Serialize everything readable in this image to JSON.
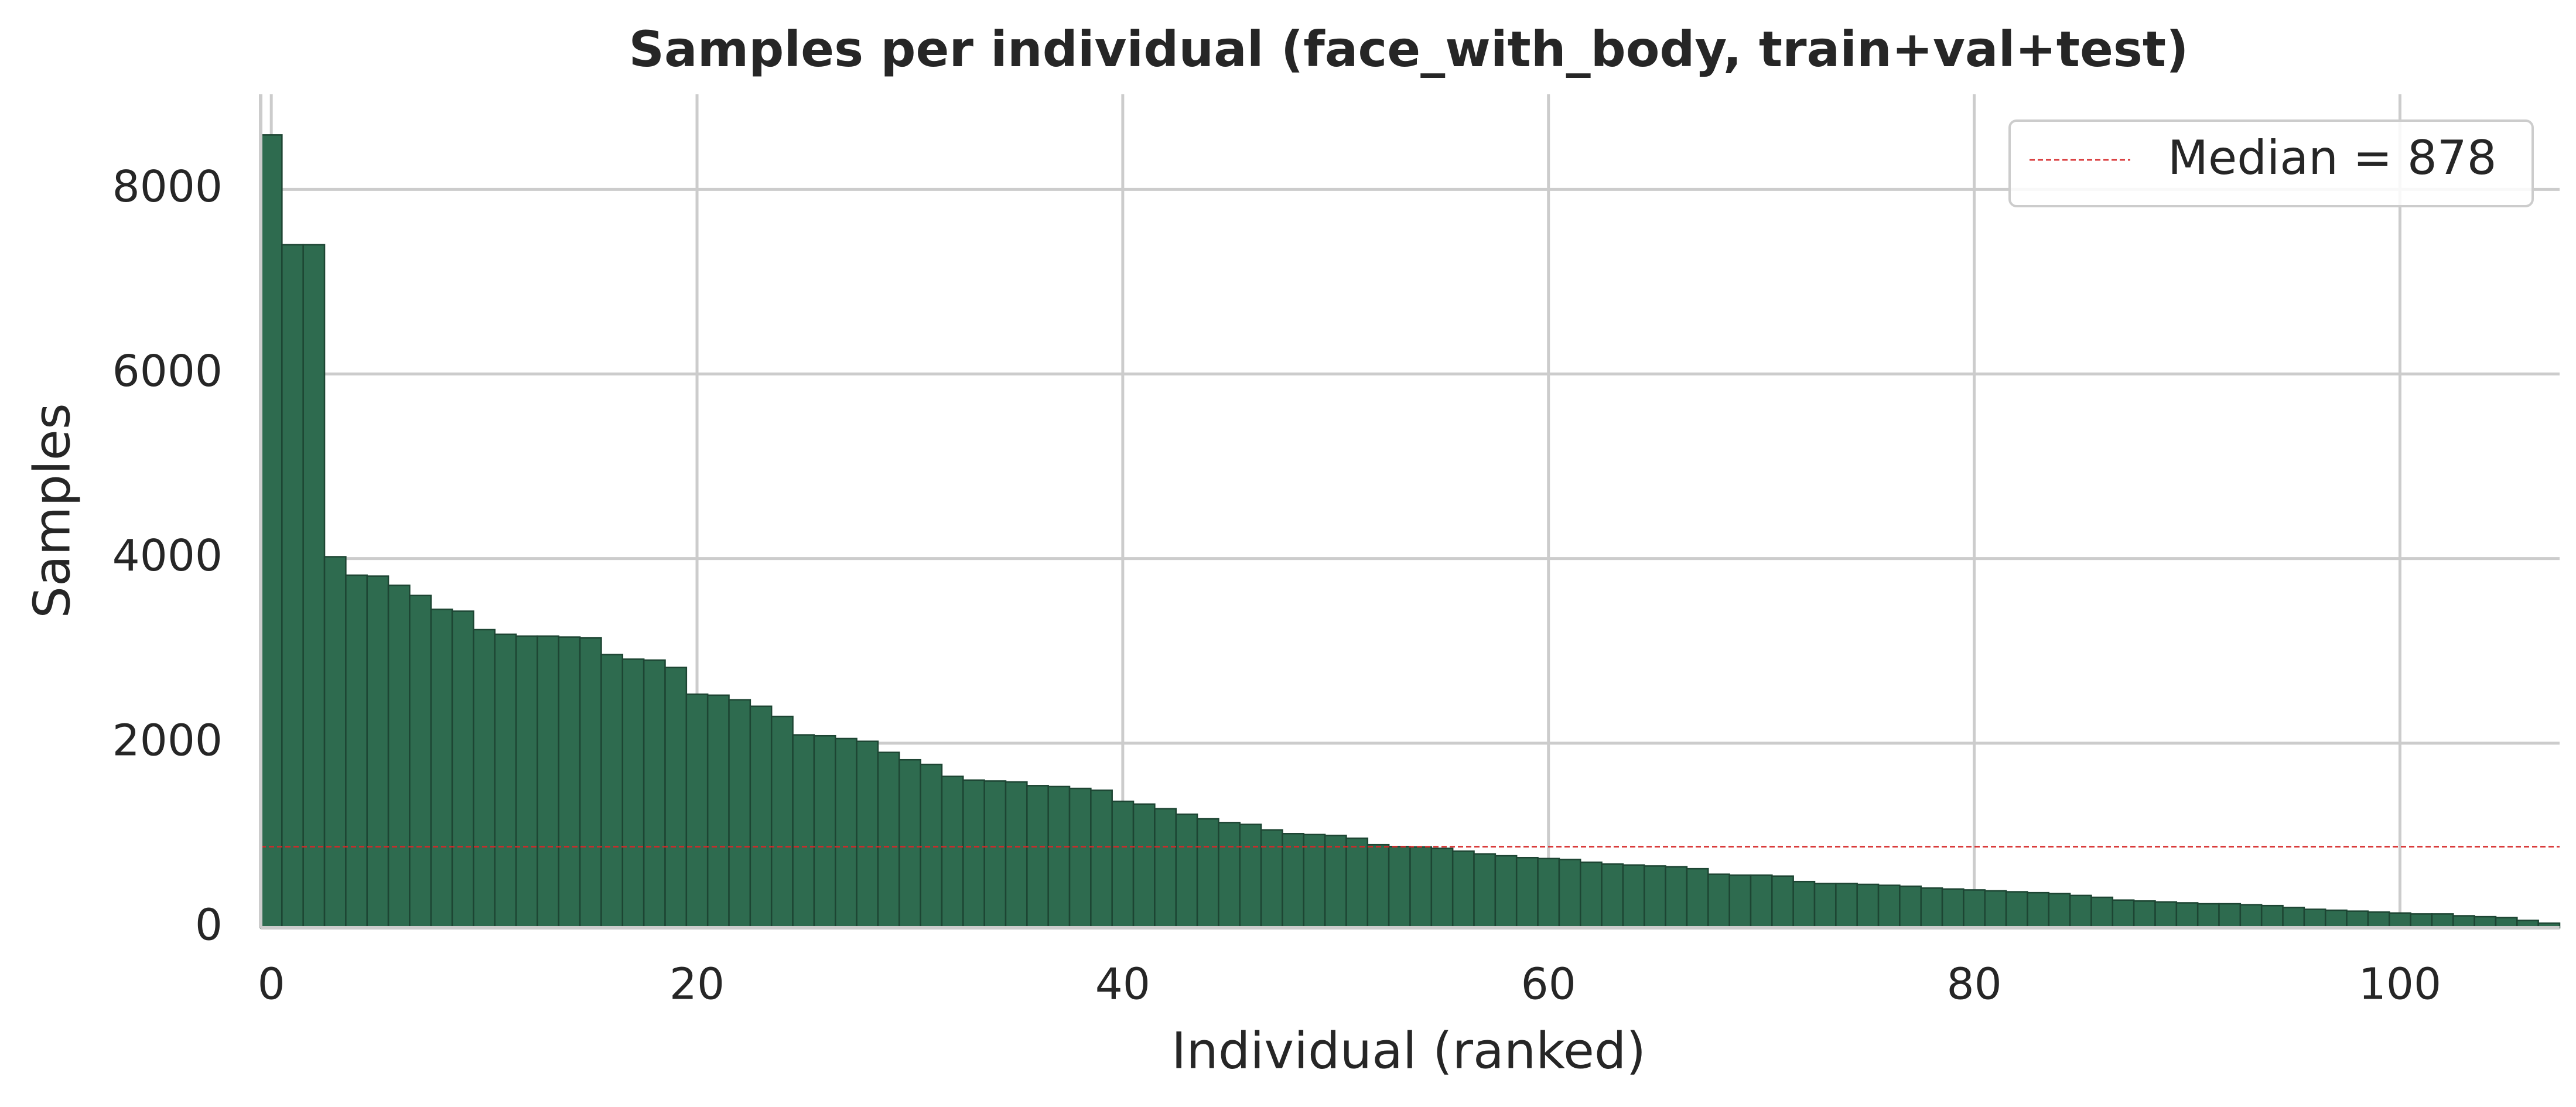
{
  "chart_data": {
    "type": "bar",
    "title": "Samples per individual (face_with_body, train+val+test)",
    "x_label": "Individual (ranked)",
    "y_label": "Samples",
    "x": [
      0,
      1,
      2,
      3,
      4,
      5,
      6,
      7,
      8,
      9,
      10,
      11,
      12,
      13,
      14,
      15,
      16,
      17,
      18,
      19,
      20,
      21,
      22,
      23,
      24,
      25,
      26,
      27,
      28,
      29,
      30,
      31,
      32,
      33,
      34,
      35,
      36,
      37,
      38,
      39,
      40,
      41,
      42,
      43,
      44,
      45,
      46,
      47,
      48,
      49,
      50,
      51,
      52,
      53,
      54,
      55,
      56,
      57,
      58,
      59,
      60,
      61,
      62,
      63,
      64,
      65,
      66,
      67,
      68,
      69,
      70,
      71,
      72,
      73,
      74,
      75,
      76,
      77,
      78,
      79,
      80,
      81,
      82,
      83,
      84,
      85,
      86,
      87,
      88,
      89,
      90,
      91,
      92,
      93,
      94,
      95,
      96,
      97,
      98,
      99,
      100,
      101,
      102,
      103,
      104,
      105,
      106,
      107
    ],
    "values": [
      8590,
      7400,
      7400,
      4020,
      3820,
      3810,
      3710,
      3600,
      3450,
      3430,
      3230,
      3180,
      3160,
      3160,
      3150,
      3140,
      2960,
      2910,
      2900,
      2820,
      2530,
      2520,
      2470,
      2400,
      2290,
      2090,
      2080,
      2050,
      2020,
      1900,
      1820,
      1770,
      1640,
      1600,
      1590,
      1580,
      1540,
      1530,
      1510,
      1490,
      1370,
      1340,
      1290,
      1230,
      1180,
      1140,
      1120,
      1060,
      1020,
      1010,
      1000,
      970,
      900,
      880,
      876,
      860,
      830,
      800,
      780,
      760,
      750,
      740,
      710,
      690,
      680,
      670,
      660,
      640,
      580,
      570,
      570,
      560,
      500,
      480,
      480,
      470,
      460,
      450,
      430,
      420,
      410,
      400,
      390,
      380,
      370,
      350,
      330,
      300,
      290,
      280,
      270,
      260,
      260,
      250,
      240,
      220,
      200,
      190,
      180,
      170,
      160,
      150,
      150,
      130,
      120,
      110,
      80,
      50
    ],
    "color": "#2e6b4f",
    "edge_color": "#1d4533",
    "median": 878,
    "median_label": "Median = 878",
    "median_color": "#d62728",
    "xlim": [
      -0.5,
      107.5
    ],
    "xticks": [
      0,
      20,
      40,
      60,
      80,
      100
    ],
    "ylim": [
      0,
      9030
    ],
    "yticks": [
      0,
      2000,
      4000,
      6000,
      8000
    ],
    "grid": true,
    "legend_position": "upper right"
  }
}
